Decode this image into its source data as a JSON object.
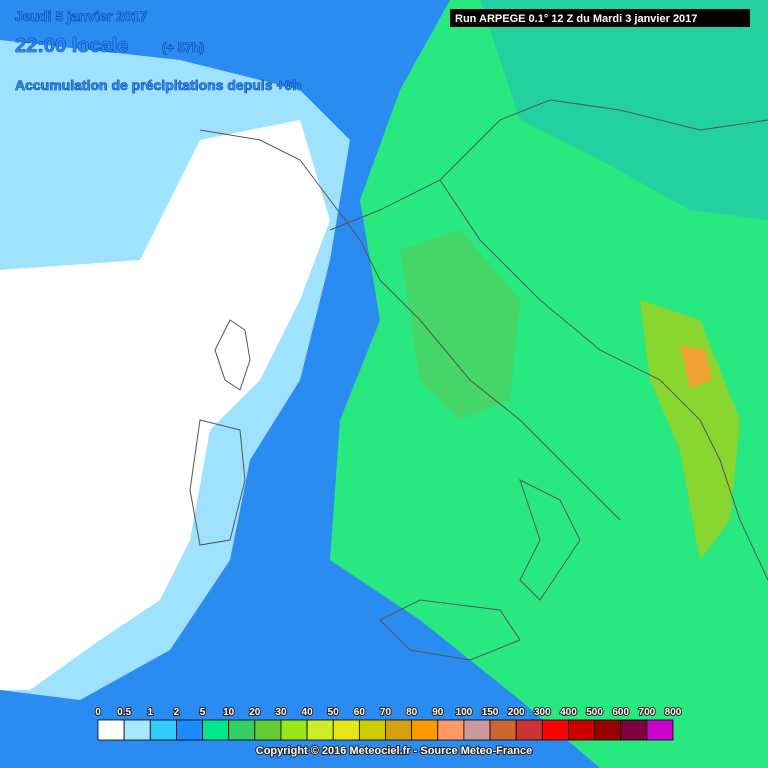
{
  "header": {
    "date": "Jeudi 5 janvier 2017",
    "time": "22:00 locale",
    "lead": "(+ 57h)",
    "subtitle": "Accumulation de précipitations depuis +0h",
    "run": "Run ARPEGE 0.1° 12 Z du Mardi 3 janvier 2017"
  },
  "legend": {
    "labels": [
      0,
      0.5,
      1,
      2,
      5,
      10,
      20,
      30,
      40,
      50,
      60,
      70,
      80,
      90,
      100,
      150,
      200,
      300,
      400,
      500,
      600,
      700,
      800
    ],
    "colors": [
      "#ffffff",
      "#a6e8ff",
      "#33ccff",
      "#1a8cff",
      "#00e68c",
      "#33cc66",
      "#66cc33",
      "#99e619",
      "#ccee22",
      "#e6e61a",
      "#cccc00",
      "#d4a010",
      "#ff9900",
      "#ff9966",
      "#cc9999",
      "#cc6633",
      "#cc3333",
      "#ff0000",
      "#cc0000",
      "#990000",
      "#800040",
      "#cc00cc"
    ]
  },
  "footer": {
    "copyright": "Copyright © 2016 Meteociel.fr - Source Meteo-France"
  }
}
